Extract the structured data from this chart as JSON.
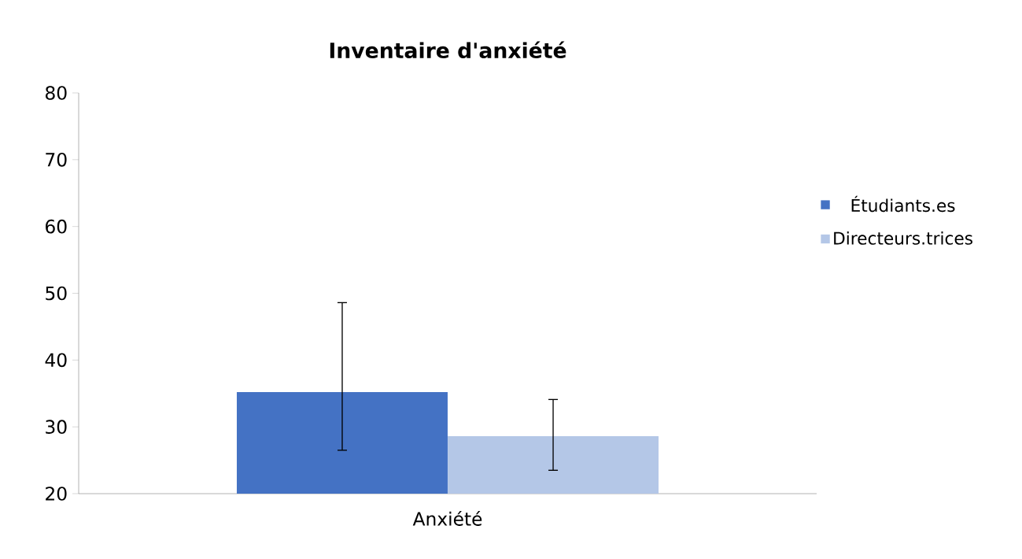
{
  "chart_data": {
    "type": "bar",
    "title": "Inventaire d'anxiété",
    "categories": [
      "Anxiété"
    ],
    "series": [
      {
        "name": "Étudiants.es",
        "color": "#4472c4",
        "values": [
          35.2
        ],
        "errors": [
          [
            26.5,
            48.6
          ]
        ]
      },
      {
        "name": "Directeurs.trices",
        "color": "#b4c7e7",
        "values": [
          28.6
        ],
        "errors": [
          [
            23.5,
            34.1
          ]
        ]
      }
    ],
    "ylim": [
      20,
      80
    ],
    "yticks": [
      20,
      30,
      40,
      50,
      60,
      70,
      80
    ],
    "legend": "right"
  }
}
